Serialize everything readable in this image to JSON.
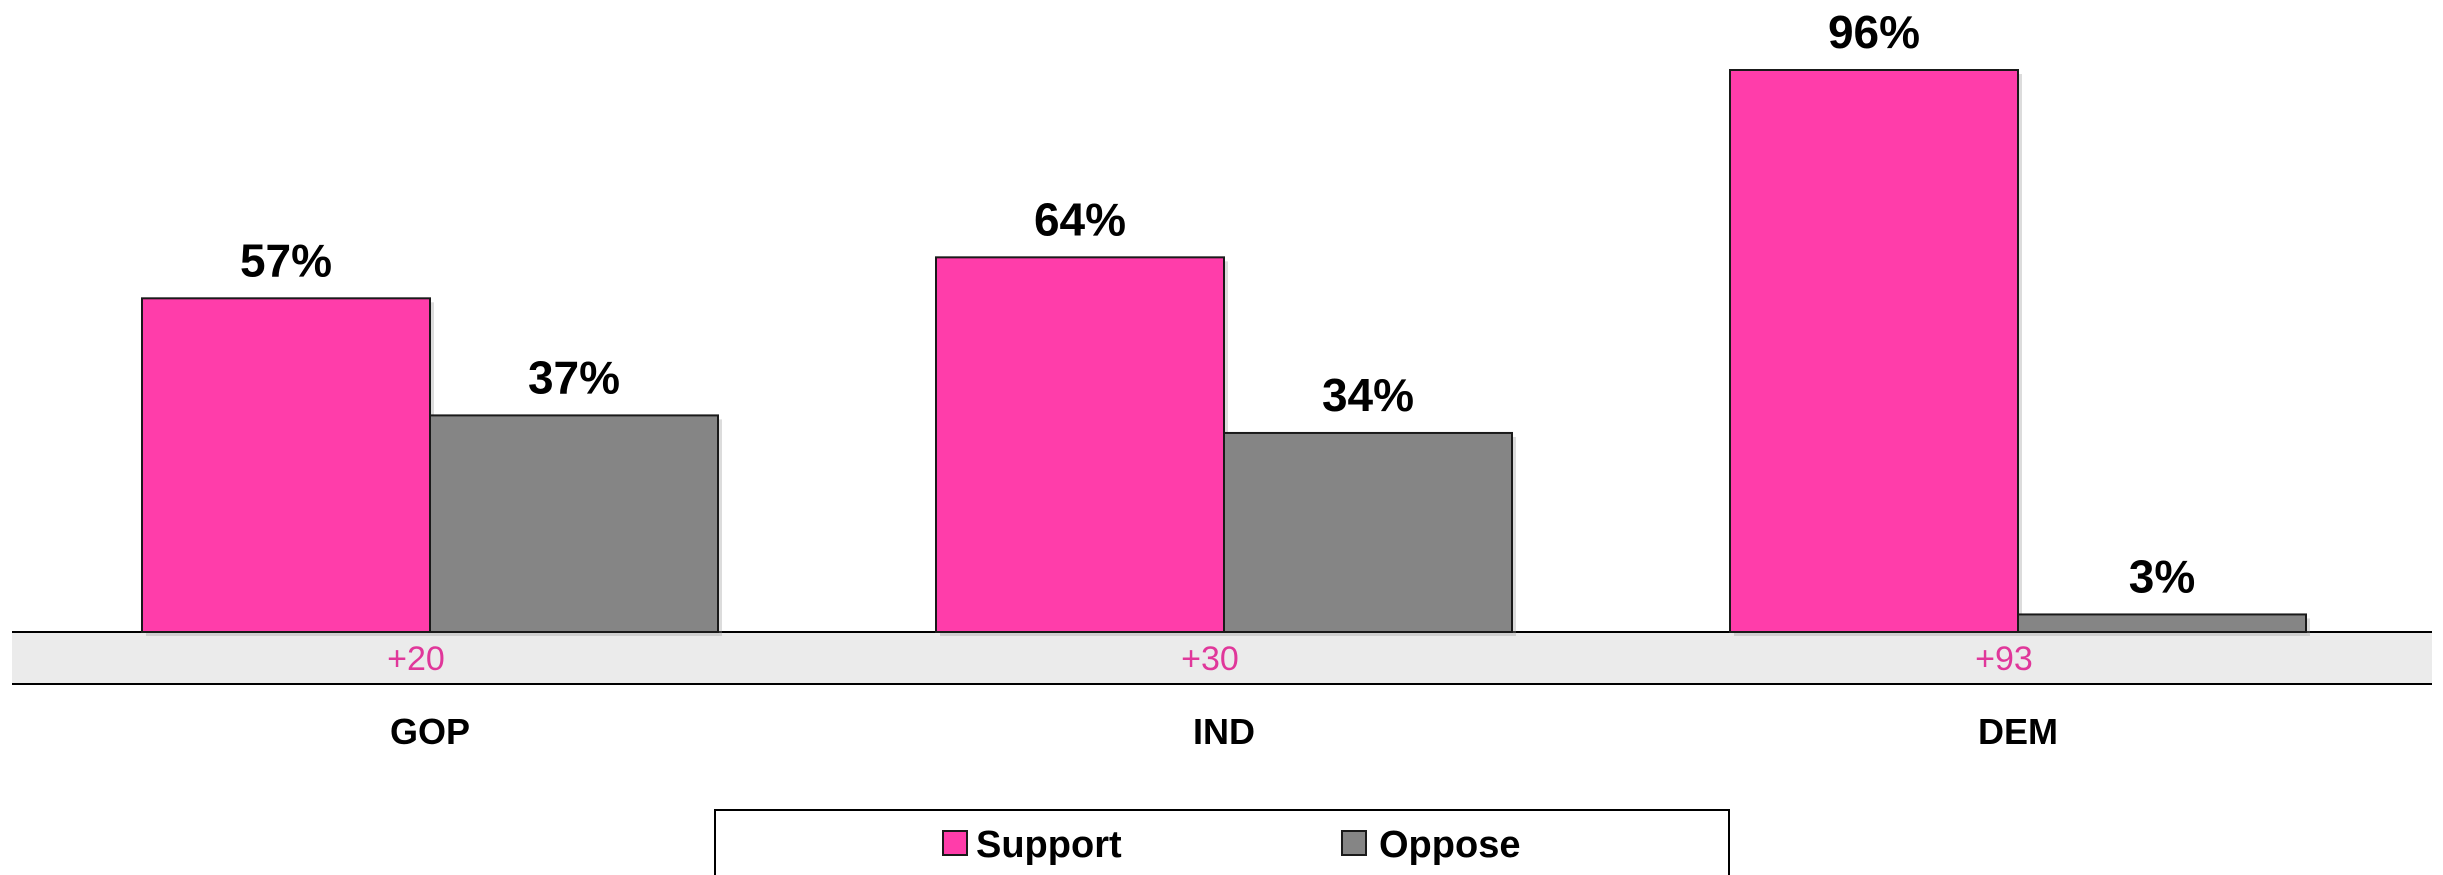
{
  "chart_data": {
    "type": "bar",
    "categories": [
      "GOP",
      "IND",
      "DEM"
    ],
    "series": [
      {
        "name": "Support",
        "color": "#FF3DAA",
        "values": [
          57,
          64,
          96
        ],
        "labels": [
          "57%",
          "64%",
          "96%"
        ]
      },
      {
        "name": "Oppose",
        "color": "#858585",
        "values": [
          37,
          34,
          3
        ],
        "labels": [
          "37%",
          "34%",
          "3%"
        ]
      }
    ],
    "differences": [
      "+20",
      "+30",
      "+93"
    ],
    "difference_color": "#E0379A",
    "difference_band_color": "#EBEBEB",
    "ylim": [
      0,
      100
    ],
    "legend_position": "bottom-center"
  }
}
